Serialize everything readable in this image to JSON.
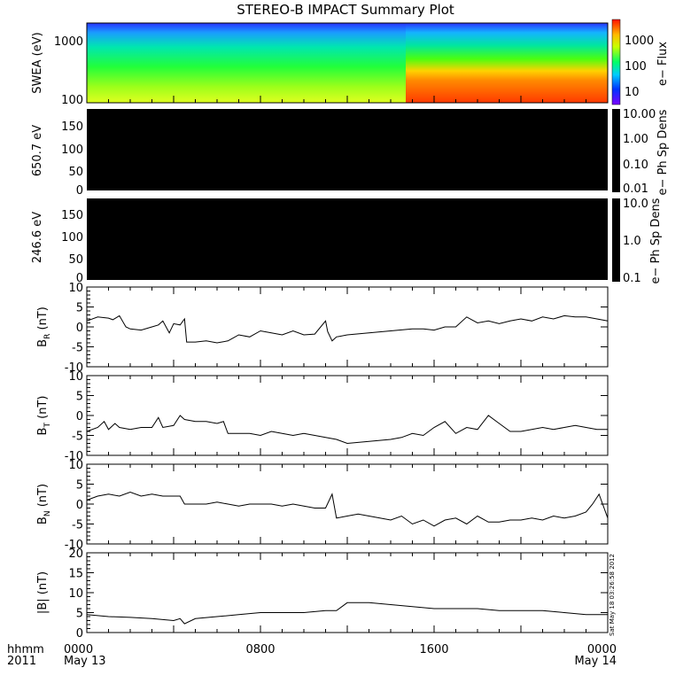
{
  "title": "STEREO-B IMPACT Summary Plot",
  "stamp": "Sat May 18 03:26:58 2012",
  "time_axis": {
    "row_label_1": "hhmm",
    "row_label_2": "2011",
    "ticks": [
      {
        "t": 0,
        "label": "0000",
        "date": "May 13"
      },
      {
        "t": 8,
        "label": "0800",
        "date": ""
      },
      {
        "t": 16,
        "label": "1600",
        "date": ""
      },
      {
        "t": 24,
        "label": "0000",
        "date": "May 14"
      }
    ],
    "range": [
      0,
      24
    ]
  },
  "chart_data": [
    {
      "type": "heatmap",
      "ylabel": "SWEA (eV)",
      "y_scale": "log",
      "y_ticks": [
        "100",
        "1000"
      ],
      "colorbar_label": "e− Flux",
      "colorbar_ticks": [
        "10",
        "100",
        "1000"
      ],
      "note": "colors shift at ~14.8 h: before, yellow-green at 100 eV; after, orange-red below ~300 eV"
    },
    {
      "type": "heatmap",
      "ylabel": "650.7 eV",
      "ylim": [
        0,
        180
      ],
      "y_ticks": [
        "0",
        "50",
        "100",
        "150"
      ],
      "colorbar_label": "e− Ph Sp Dens",
      "colorbar_ticks": [
        "0.01",
        "0.10",
        "1.00",
        "10.00"
      ],
      "fill": "#000000"
    },
    {
      "type": "heatmap",
      "ylabel": "246.6 eV",
      "ylim": [
        0,
        180
      ],
      "y_ticks": [
        "0",
        "50",
        "100",
        "150"
      ],
      "colorbar_label": "e− Ph Sp Dens",
      "colorbar_ticks": [
        "0.1",
        "1.0",
        "10.0"
      ],
      "fill": "#000000"
    },
    {
      "type": "line",
      "ylabel": "B",
      "ylabel_sub": "R",
      "ylabel_unit": "(nT)",
      "ylim": [
        -10,
        10
      ],
      "y_ticks": [
        "-10",
        "-5",
        "0",
        "5",
        "10"
      ],
      "x": [
        0,
        0.5,
        1,
        1.2,
        1.5,
        1.8,
        2,
        2.5,
        3,
        3.3,
        3.5,
        3.8,
        4,
        4.3,
        4.5,
        4.6,
        5,
        5.5,
        6,
        6.5,
        7,
        7.5,
        8,
        8.5,
        9,
        9.5,
        10,
        10.5,
        11,
        11.1,
        11.3,
        11.5,
        12,
        13,
        14,
        15,
        15.5,
        16,
        16.5,
        17,
        17.5,
        18,
        18.5,
        19,
        19.5,
        20,
        20.5,
        21,
        21.5,
        22,
        22.5,
        23,
        23.5,
        24
      ],
      "y": [
        1.5,
        2.5,
        2.2,
        1.8,
        2.8,
        0,
        -0.5,
        -0.8,
        0,
        0.5,
        1.5,
        -1.5,
        0.8,
        0.5,
        2,
        -3.8,
        -3.8,
        -3.5,
        -4,
        -3.5,
        -2,
        -2.5,
        -1,
        -1.5,
        -2,
        -1,
        -2,
        -1.8,
        1.5,
        -1.2,
        -3.5,
        -2.5,
        -2,
        -1.5,
        -1,
        -0.5,
        -0.5,
        -0.8,
        0,
        0,
        2.5,
        1,
        1.5,
        0.8,
        1.5,
        2,
        1.5,
        2.5,
        2,
        2.8,
        2.5,
        2.5,
        2,
        1.5
      ]
    },
    {
      "type": "line",
      "ylabel": "B",
      "ylabel_sub": "T",
      "ylabel_unit": "(nT)",
      "ylim": [
        -10,
        10
      ],
      "y_ticks": [
        "-10",
        "-5",
        "0",
        "5",
        "10"
      ],
      "x": [
        0,
        0.5,
        0.8,
        1,
        1.3,
        1.5,
        2,
        2.5,
        3,
        3.3,
        3.5,
        4,
        4.3,
        4.5,
        5,
        5.5,
        6,
        6.3,
        6.5,
        7,
        7.5,
        8,
        8.5,
        9,
        9.5,
        10,
        10.5,
        11,
        11.5,
        12,
        13,
        14,
        14.5,
        15,
        15.5,
        16,
        16.5,
        17,
        17.5,
        18,
        18.5,
        19,
        19.5,
        20,
        20.5,
        21,
        21.5,
        22,
        22.5,
        23,
        23.5,
        24
      ],
      "y": [
        -4,
        -3,
        -1.5,
        -3.5,
        -2,
        -3,
        -3.5,
        -3,
        -3,
        -0.5,
        -3,
        -2.5,
        0,
        -1,
        -1.5,
        -1.5,
        -2,
        -1.5,
        -4.5,
        -4.5,
        -4.5,
        -5,
        -4,
        -4.5,
        -5,
        -4.5,
        -5,
        -5.5,
        -6,
        -7,
        -6.5,
        -6,
        -5.5,
        -4.5,
        -5,
        -3,
        -1.5,
        -4.5,
        -3,
        -3.5,
        0,
        -2,
        -4,
        -4,
        -3.5,
        -3,
        -3.5,
        -3,
        -2.5,
        -3,
        -3.5,
        -3.5
      ]
    },
    {
      "type": "line",
      "ylabel": "B",
      "ylabel_sub": "N",
      "ylabel_unit": "(nT)",
      "ylim": [
        -10,
        10
      ],
      "y_ticks": [
        "-10",
        "-5",
        "0",
        "5",
        "10"
      ],
      "x": [
        0,
        0.5,
        1,
        1.5,
        2,
        2.5,
        3,
        3.5,
        4,
        4.3,
        4.5,
        5,
        5.5,
        6,
        6.5,
        7,
        7.5,
        8,
        8.5,
        9,
        9.5,
        10,
        10.5,
        11,
        11.3,
        11.5,
        12,
        12.5,
        13,
        13.5,
        14,
        14.5,
        15,
        15.5,
        16,
        16.5,
        17,
        17.5,
        18,
        18.5,
        19,
        19.5,
        20,
        20.5,
        21,
        21.5,
        22,
        22.5,
        23,
        23.3,
        23.6,
        24
      ],
      "y": [
        1,
        2,
        2.5,
        2,
        3,
        2,
        2.5,
        2,
        2,
        2,
        0,
        0,
        0,
        0.5,
        0,
        -0.5,
        0,
        0,
        0,
        -0.5,
        0,
        -0.5,
        -1,
        -1,
        2.5,
        -3.5,
        -3,
        -2.5,
        -3,
        -3.5,
        -4,
        -3,
        -5,
        -4,
        -5.5,
        -4,
        -3.5,
        -5,
        -3,
        -4.5,
        -4.5,
        -4,
        -4,
        -3.5,
        -4,
        -3,
        -3.5,
        -3,
        -2,
        0,
        2.5,
        -3.5
      ]
    },
    {
      "type": "line",
      "ylabel": "|B| (nT)",
      "ylim": [
        0,
        20
      ],
      "y_ticks": [
        "0",
        "5",
        "10",
        "15",
        "20"
      ],
      "x": [
        0,
        1,
        2,
        3,
        4,
        4.3,
        4.5,
        5,
        6,
        7,
        8,
        9,
        10,
        11,
        11.5,
        12,
        13,
        14,
        15,
        16,
        17,
        18,
        19,
        20,
        21,
        22,
        23,
        24
      ],
      "y": [
        4.5,
        4,
        3.8,
        3.5,
        3,
        3.5,
        2.2,
        3.5,
        4,
        4.5,
        5,
        5,
        5,
        5.5,
        5.5,
        7.5,
        7.5,
        7,
        6.5,
        6,
        6,
        6,
        5.5,
        5.5,
        5.5,
        5,
        4.5,
        4.5
      ]
    }
  ]
}
